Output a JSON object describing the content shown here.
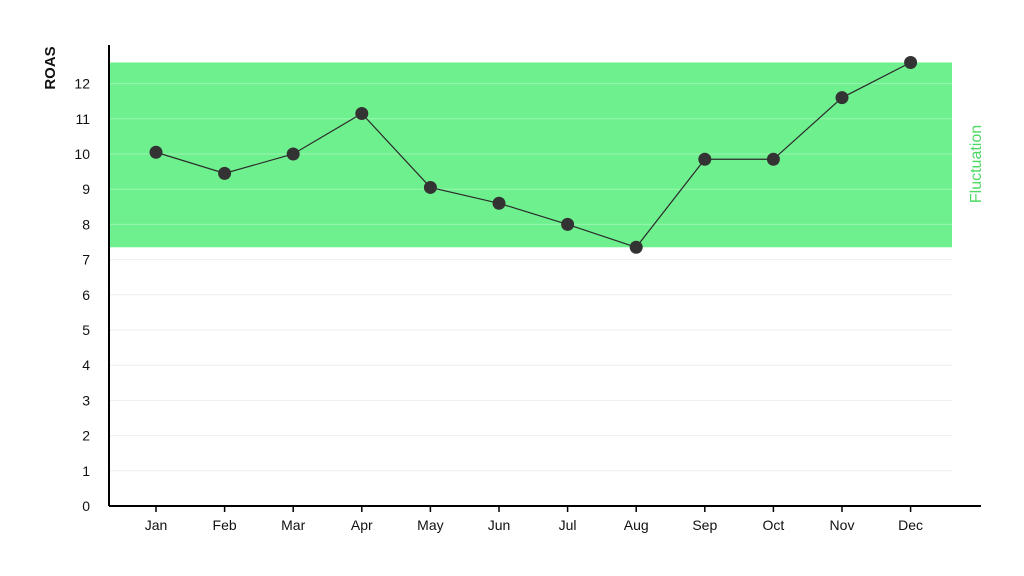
{
  "chart_data": {
    "type": "line",
    "title": "",
    "xlabel": "",
    "ylabel": "ROAS",
    "categories": [
      "Jan",
      "Feb",
      "Mar",
      "Apr",
      "May",
      "Jun",
      "Jul",
      "Aug",
      "Sep",
      "Oct",
      "Nov",
      "Dec"
    ],
    "series": [
      {
        "values": [
          10.05,
          9.45,
          10.0,
          11.15,
          9.05,
          8.6,
          8.0,
          7.35,
          9.85,
          9.85,
          11.6,
          12.6
        ]
      }
    ],
    "ylim": [
      0,
      12.6
    ],
    "yticks": [
      0,
      1,
      2,
      3,
      4,
      5,
      6,
      7,
      8,
      9,
      10,
      11,
      12
    ],
    "band": {
      "label": "Fluctuation",
      "from": 7.35,
      "to": 12.6
    },
    "grid": "horizontal",
    "legend": "none",
    "colors": {
      "line": "#2b2b2b",
      "marker": "#333333",
      "band": "#6ff08e",
      "band_label": "#4cd964",
      "grid": "#eeeeee",
      "axis": "#000000"
    }
  }
}
